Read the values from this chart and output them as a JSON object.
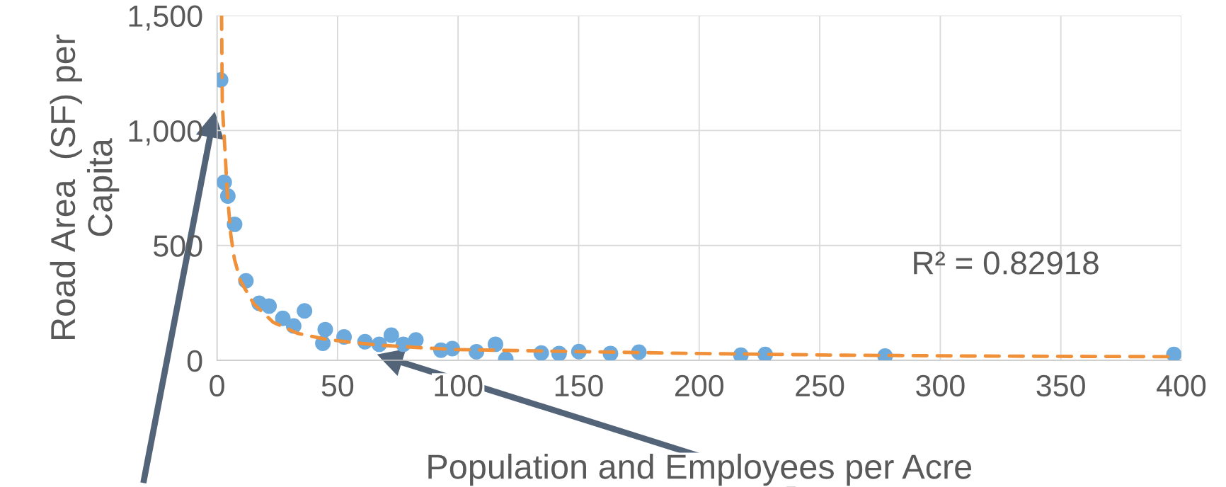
{
  "chart_data": {
    "type": "scatter",
    "xlabel": "Population and Employees per Acre",
    "ylabel": "Road Area  (SF) per\nCapita",
    "annotations": [
      "R² = 0.82918"
    ],
    "series": [
      {
        "type": "scatter",
        "color": "#6ca9dc",
        "marker": "circle",
        "x": [
          1.5,
          3,
          4.5,
          7.3,
          12,
          17.5,
          21.6,
          27.3,
          31.8,
          36.3,
          44.9,
          43.9,
          52.7,
          61.4,
          67.3,
          72.3,
          77.3,
          82.5,
          92.9,
          97.6,
          107.6,
          115.5,
          119.8,
          134.5,
          141.9,
          150.1,
          163.2,
          175,
          217.3,
          227.4,
          277.1,
          396.9
        ],
        "values": [
          1220,
          775,
          715,
          592,
          346,
          248,
          236,
          183,
          150,
          215,
          134,
          74,
          102,
          81,
          70,
          110,
          70,
          89,
          44,
          51,
          37,
          70,
          5,
          32,
          30,
          38,
          30,
          36,
          23,
          26,
          19,
          26
        ]
      },
      {
        "type": "line",
        "color": "#f0913a",
        "line_style": "dashed",
        "x": [
          1.9,
          2.2,
          3.4,
          4.2,
          5.7,
          7.2,
          9.7,
          15.3,
          23.3,
          33.3,
          44.4,
          55.4,
          67.5,
          86.5,
          98.6,
          198.3,
          256.6,
          311,
          396
        ],
        "values": [
          1500,
          1110,
          898,
          739,
          548,
          442,
          346,
          245,
          166,
          118,
          93,
          79,
          66,
          54,
          47,
          30,
          23,
          19,
          16
        ]
      }
    ],
    "xlim": [
      0,
      400
    ],
    "xticks": [
      0,
      50,
      100,
      150,
      200,
      250,
      300,
      350,
      400
    ],
    "ylim": [
      0,
      1500
    ],
    "yticks": [
      0,
      500,
      {
        "value": 1000,
        "label": "1,000"
      },
      {
        "value": 1500,
        "label": "1,500"
      }
    ],
    "grid": true,
    "legend": false
  }
}
